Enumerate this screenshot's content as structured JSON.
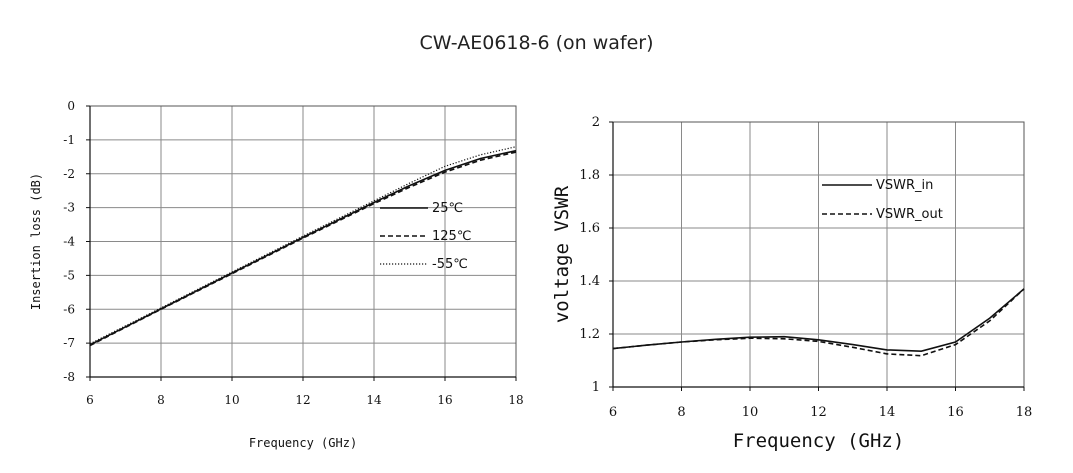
{
  "title": "CW-AE0618-6 (on wafer)",
  "chart_data": [
    {
      "type": "line",
      "xlabel": "Frequency (GHz)",
      "ylabel": "Insertion loss (dB)",
      "xlim": [
        6,
        18
      ],
      "ylim": [
        -8,
        0
      ],
      "xticks": [
        6,
        8,
        10,
        12,
        14,
        16,
        18
      ],
      "yticks": [
        0,
        -1,
        -2,
        -3,
        -4,
        -5,
        -6,
        -7,
        -8
      ],
      "grid": true,
      "legend_position": "center-right",
      "series": [
        {
          "name": "25℃",
          "style": "solid",
          "x": [
            6,
            8,
            10,
            12,
            14,
            15,
            16,
            17,
            18
          ],
          "y": [
            -7.05,
            -5.99,
            -4.93,
            -3.88,
            -2.85,
            -2.35,
            -1.9,
            -1.55,
            -1.32
          ]
        },
        {
          "name": "125℃",
          "style": "dashed",
          "x": [
            6,
            8,
            10,
            12,
            14,
            15,
            16,
            17,
            18
          ],
          "y": [
            -7.07,
            -6.0,
            -4.95,
            -3.9,
            -2.88,
            -2.4,
            -1.95,
            -1.6,
            -1.36
          ]
        },
        {
          "name": "-55℃",
          "style": "dotted",
          "x": [
            6,
            8,
            10,
            12,
            14,
            15,
            16,
            17,
            18
          ],
          "y": [
            -7.02,
            -5.96,
            -4.9,
            -3.84,
            -2.8,
            -2.28,
            -1.78,
            -1.44,
            -1.2
          ]
        }
      ]
    },
    {
      "type": "line",
      "xlabel": "Frequency (GHz)",
      "ylabel": "voltage VSWR",
      "xlim": [
        6,
        18
      ],
      "ylim": [
        1,
        2
      ],
      "xticks": [
        6,
        8,
        10,
        12,
        14,
        16,
        18
      ],
      "yticks": [
        1,
        1.2,
        1.4,
        1.6,
        1.8,
        2
      ],
      "grid": true,
      "legend_position": "top-right",
      "series": [
        {
          "name": "VSWR_in",
          "style": "solid",
          "x": [
            6,
            7,
            8,
            9,
            10,
            11,
            12,
            13,
            14,
            15,
            16,
            17,
            18
          ],
          "y": [
            1.145,
            1.158,
            1.17,
            1.18,
            1.188,
            1.19,
            1.178,
            1.16,
            1.14,
            1.135,
            1.17,
            1.26,
            1.37
          ]
        },
        {
          "name": "VSWR_out",
          "style": "dashed",
          "x": [
            6,
            7,
            8,
            9,
            10,
            11,
            12,
            13,
            14,
            15,
            16,
            17,
            18
          ],
          "y": [
            1.145,
            1.158,
            1.17,
            1.178,
            1.184,
            1.182,
            1.172,
            1.15,
            1.125,
            1.118,
            1.16,
            1.25,
            1.37
          ]
        }
      ]
    }
  ]
}
